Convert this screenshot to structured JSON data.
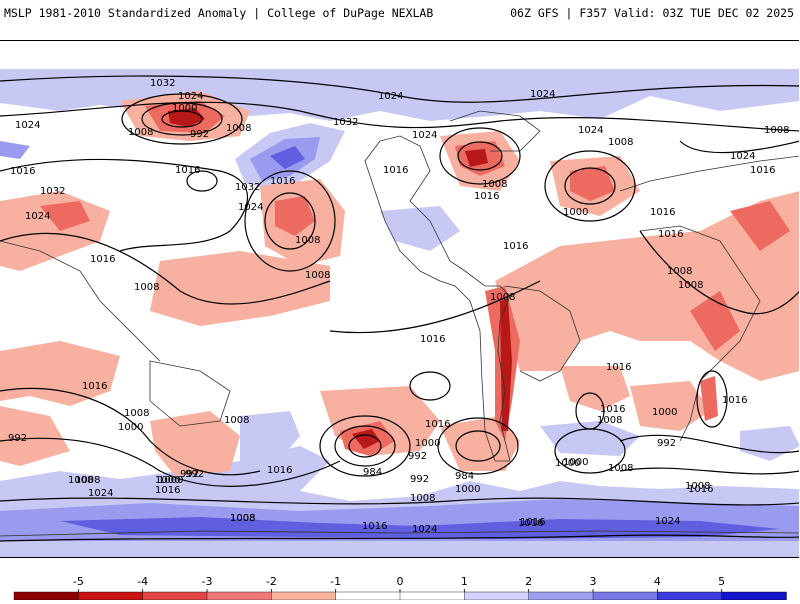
{
  "header": {
    "left_title": "MSLP 1981-2010 Standardized Anomaly | College of DuPage NEXLAB",
    "right_title": "06Z GFS | F357 Valid: 03Z TUE DEC 02 2025"
  },
  "map": {
    "description_kind": "global mean sea level pressure isobars over standardized anomaly shading",
    "isobar_labels": [
      {
        "text": "1032"
      },
      {
        "text": "1024"
      },
      {
        "text": "1000"
      },
      {
        "text": "992"
      },
      {
        "text": "1008"
      },
      {
        "text": "1024"
      },
      {
        "text": "1008"
      },
      {
        "text": "1016"
      },
      {
        "text": "1032"
      },
      {
        "text": "1024"
      },
      {
        "text": "1016"
      },
      {
        "text": "1008"
      },
      {
        "text": "1032"
      },
      {
        "text": "1024"
      },
      {
        "text": "1016"
      },
      {
        "text": "1008"
      },
      {
        "text": "1008"
      },
      {
        "text": "1032"
      },
      {
        "text": "1016"
      },
      {
        "text": "1024"
      },
      {
        "text": "1024"
      },
      {
        "text": "1016"
      },
      {
        "text": "1008"
      },
      {
        "text": "1016"
      },
      {
        "text": "1024"
      },
      {
        "text": "1008"
      },
      {
        "text": "1000"
      },
      {
        "text": "1016"
      },
      {
        "text": "1024"
      },
      {
        "text": "1008"
      },
      {
        "text": "1016"
      },
      {
        "text": "1016"
      },
      {
        "text": "1008"
      },
      {
        "text": "1008"
      },
      {
        "text": "1008"
      },
      {
        "text": "1016"
      },
      {
        "text": "1024"
      },
      {
        "text": "1016"
      },
      {
        "text": "1016"
      },
      {
        "text": "1008"
      },
      {
        "text": "1000"
      },
      {
        "text": "992"
      },
      {
        "text": "1016"
      },
      {
        "text": "1008"
      },
      {
        "text": "1016"
      },
      {
        "text": "1008"
      },
      {
        "text": "1000"
      },
      {
        "text": "992"
      },
      {
        "text": "984"
      },
      {
        "text": "1016"
      },
      {
        "text": "1000"
      },
      {
        "text": "992"
      },
      {
        "text": "984"
      },
      {
        "text": "992"
      },
      {
        "text": "1000"
      },
      {
        "text": "1008"
      },
      {
        "text": "1016"
      },
      {
        "text": "1008"
      },
      {
        "text": "1000"
      },
      {
        "text": "1016"
      },
      {
        "text": "1000"
      },
      {
        "text": "992"
      },
      {
        "text": "1008"
      },
      {
        "text": "1016"
      },
      {
        "text": "1008"
      },
      {
        "text": "1016"
      },
      {
        "text": "1024"
      },
      {
        "text": "1008"
      },
      {
        "text": "1008"
      },
      {
        "text": "1000"
      },
      {
        "text": "1016"
      },
      {
        "text": "992"
      },
      {
        "text": "1000"
      },
      {
        "text": "1008"
      },
      {
        "text": "1016"
      },
      {
        "text": "1024"
      },
      {
        "text": "1016"
      },
      {
        "text": "1024"
      }
    ]
  },
  "colorbar": {
    "ticks": [
      "-5",
      "-4",
      "-3",
      "-2",
      "-1",
      "0",
      "1",
      "2",
      "3",
      "4",
      "5"
    ],
    "colors": [
      "#8b0000",
      "#c81414",
      "#e04646",
      "#f07878",
      "#fab4a0",
      "#ffffff",
      "#ffffff",
      "#d2d2fa",
      "#a0a0f0",
      "#7878e6",
      "#3c3cdc",
      "#1414c8"
    ]
  }
}
